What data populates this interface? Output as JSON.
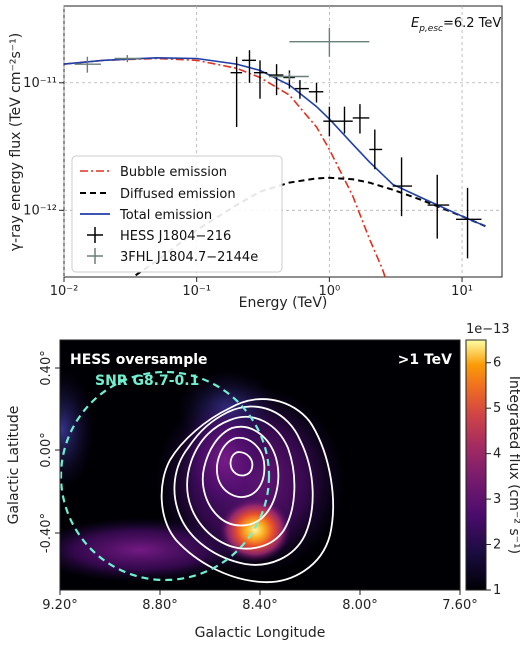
{
  "chart_data": [
    {
      "type": "line",
      "annotation": "E_{p,esc}=6.2 TeV",
      "annotation_main": "E",
      "annotation_sub": "p,esc",
      "annotation_rest": "=6.2 TeV",
      "xlabel": "Energy (TeV)",
      "ylabel": "γ-ray energy flux (TeV cm⁻²s⁻¹)",
      "xscale": "log",
      "yscale": "log",
      "xlim": [
        0.01,
        20
      ],
      "ylim": [
        3e-13,
        4e-11
      ],
      "x_ticks": [
        "10⁻²",
        "10⁻¹",
        "10⁰",
        "10¹"
      ],
      "y_ticks": [
        "10⁻¹²",
        "10⁻¹¹"
      ],
      "grid": true,
      "legend_position": "lower-left",
      "series": [
        {
          "name": "Bubble emission",
          "color": "#e0301e",
          "style": "dashdot",
          "x": [
            0.01,
            0.02,
            0.05,
            0.1,
            0.2,
            0.3,
            0.5,
            0.8,
            1.0,
            1.5,
            2.0,
            2.5,
            3.0
          ],
          "y": [
            1.4e-11,
            1.5e-11,
            1.55e-11,
            1.5e-11,
            1.3e-11,
            1.1e-11,
            8e-12,
            4.5e-12,
            3e-12,
            1.3e-12,
            6e-13,
            3.5e-13,
            2e-13
          ]
        },
        {
          "name": "Diffused emission",
          "color": "#000000",
          "style": "dashed",
          "x": [
            0.03,
            0.05,
            0.1,
            0.2,
            0.3,
            0.5,
            0.8,
            1.0,
            1.5,
            2.0,
            3.0,
            5.0,
            10.0,
            15.0
          ],
          "y": [
            2.8e-13,
            4e-13,
            7e-13,
            1.1e-12,
            1.4e-12,
            1.65e-12,
            1.78e-12,
            1.8e-12,
            1.75e-12,
            1.65e-12,
            1.45e-12,
            1.2e-12,
            9e-13,
            7.5e-13
          ]
        },
        {
          "name": "Total emission",
          "color": "#1f3fa8",
          "style": "solid",
          "x": [
            0.01,
            0.02,
            0.05,
            0.1,
            0.2,
            0.3,
            0.5,
            0.8,
            1.0,
            1.5,
            2.0,
            3.0,
            5.0,
            10.0,
            15.0
          ],
          "y": [
            1.4e-11,
            1.5e-11,
            1.57e-11,
            1.55e-11,
            1.4e-11,
            1.25e-11,
            9.6e-12,
            6.5e-12,
            5.2e-12,
            3.3e-12,
            2.4e-12,
            1.6e-12,
            1.25e-12,
            9e-13,
            7.5e-13
          ]
        }
      ],
      "points": [
        {
          "name": "HESS J1804−216",
          "color": "#000000",
          "x": [
            0.2,
            0.25,
            0.3,
            0.4,
            0.5,
            0.6,
            0.8,
            1.0,
            1.3,
            1.7,
            2.2,
            3.5,
            6.5,
            11.0
          ],
          "y": [
            1.2e-11,
            1.5e-11,
            1.2e-11,
            1.15e-11,
            1.1e-11,
            9e-12,
            8.5e-12,
            5e-12,
            5e-12,
            5.3e-12,
            3e-12,
            1.55e-12,
            1.1e-12,
            8.5e-13
          ],
          "xerr_lo": [
            0.18,
            0.22,
            0.27,
            0.35,
            0.45,
            0.55,
            0.7,
            0.9,
            1.15,
            1.5,
            2.0,
            3.0,
            5.5,
            9.0
          ],
          "xerr_hi": [
            0.22,
            0.28,
            0.34,
            0.45,
            0.55,
            0.7,
            0.9,
            1.15,
            1.5,
            2.0,
            2.5,
            4.2,
            8.0,
            14.0
          ],
          "yerr_lo": [
            4.5e-12,
            1e-11,
            7.5e-12,
            8e-12,
            9e-12,
            7.5e-12,
            7e-12,
            3.8e-12,
            4e-12,
            4e-12,
            2.1e-12,
            9e-13,
            6e-13,
            4.2e-13
          ],
          "yerr_hi": [
            1.6e-11,
            1.8e-11,
            1.5e-11,
            1.4e-11,
            1.25e-11,
            1.05e-11,
            1e-11,
            6.5e-12,
            6.5e-12,
            6.8e-12,
            4.3e-12,
            2.6e-12,
            1.9e-12,
            1.5e-12
          ]
        },
        {
          "name": "3FHL J1804.7−2144e",
          "color": "#6a7f7a",
          "x": [
            0.015,
            0.03,
            0.5,
            1.0
          ],
          "y": [
            1.4e-11,
            1.55e-11,
            1.12e-11,
            2.1e-11
          ],
          "xerr_lo": [
            0.012,
            0.024,
            0.35,
            0.5
          ],
          "xerr_hi": [
            0.019,
            0.038,
            0.7,
            2.0
          ],
          "yerr_lo": [
            1.2e-11,
            1.45e-11,
            1.05e-11,
            1.6e-11
          ],
          "yerr_hi": [
            1.6e-11,
            1.65e-11,
            1.2e-11,
            2.7e-11
          ]
        }
      ]
    },
    {
      "type": "heatmap",
      "title_left": "HESS oversample",
      "title_right": ">1 TeV",
      "snr_label": "SNR G8.7-0.1",
      "xlabel": "Galactic Longitude",
      "ylabel": "Galactic Latitude",
      "x_ticks": [
        "9.20°",
        "8.80°",
        "8.40°",
        "8.00°",
        "7.60°"
      ],
      "y_ticks": [
        "0.40°",
        "0.00°",
        "-0.40°"
      ],
      "colorbar_label": "Integrated flux (cm⁻² s⁻¹)",
      "colorbar_multiplier": "1e−13",
      "colorbar_ticks": [
        "1",
        "2",
        "3",
        "4",
        "5",
        "6"
      ],
      "colorbar_range": [
        1,
        6.5
      ],
      "snr_circle_color": "#6ff0d0",
      "contour_color": "#ffffff"
    }
  ]
}
